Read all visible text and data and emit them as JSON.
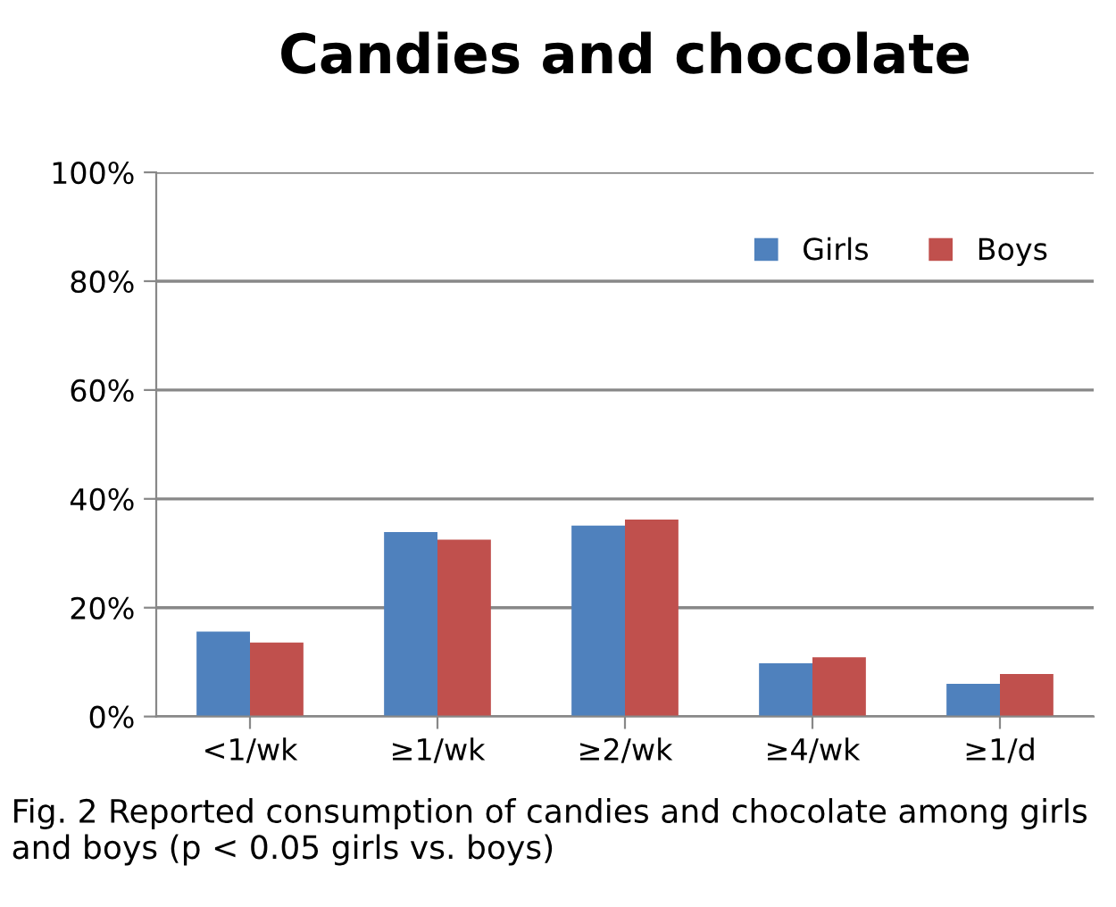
{
  "chart_data": {
    "type": "bar",
    "title": "Candies and chocolate",
    "categories": [
      "<1/wk",
      "≥1/wk",
      "≥2/wk",
      "≥4/wk",
      "≥1/d"
    ],
    "series": [
      {
        "name": "Girls",
        "color": "#4f81bd",
        "values": [
          15.6,
          33.9,
          35.1,
          9.8,
          6.0
        ]
      },
      {
        "name": "Boys",
        "color": "#c0504d",
        "values": [
          13.6,
          32.5,
          36.2,
          10.9,
          7.8
        ]
      }
    ],
    "ylim": [
      0,
      100
    ],
    "yticks": [
      {
        "value": 0,
        "label": "0%"
      },
      {
        "value": 20,
        "label": "20%"
      },
      {
        "value": 40,
        "label": "40%"
      },
      {
        "value": 60,
        "label": "60%"
      },
      {
        "value": 80,
        "label": "80%"
      },
      {
        "value": 100,
        "label": "100%"
      }
    ],
    "grid": "y",
    "legend": "top right",
    "annotations": [
      "Fig. 2 Reported consumption of candies and chocolate among girls and boys (p < 0.05 girls vs. boys)"
    ]
  }
}
